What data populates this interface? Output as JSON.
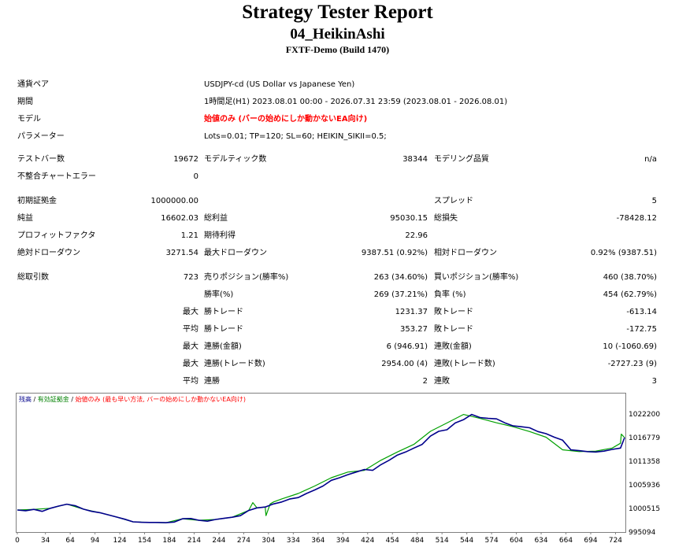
{
  "report": {
    "title": "Strategy Tester Report",
    "expert": "04_HeikinAshi",
    "server": "FXTF-Demo (Build 1470)"
  },
  "settings": {
    "symbol_label": "通貨ペア",
    "symbol_value": "USDJPY-cd (US Dollar vs Japanese Yen)",
    "period_label": "期間",
    "period_value": "1時間足(H1) 2023.08.01 00:00 - 2026.07.31 23:59 (2023.08.01 - 2026.08.01)",
    "model_label": "モデル",
    "model_value": "始値のみ (バーの始めにしか動かないEA向け)",
    "params_label": "パラメーター",
    "params_value": "Lots=0.01; TP=120; SL=60; HEIKIN_SIKII=0.5;"
  },
  "bars": {
    "bars_label": "テストバー数",
    "bars_value": "19672",
    "ticks_label": "モデルティック数",
    "ticks_value": "38344",
    "quality_label": "モデリング品質",
    "quality_value": "n/a",
    "errors_label": "不整合チャートエラー",
    "errors_value": "0"
  },
  "stats": {
    "deposit_label": "初期証拠金",
    "deposit_value": "1000000.00",
    "spread_label": "スプレッド",
    "spread_value": "5",
    "net_label": "純益",
    "net_value": "16602.03",
    "gross_profit_label": "総利益",
    "gross_profit_value": "95030.15",
    "gross_loss_label": "総損失",
    "gross_loss_value": "-78428.12",
    "pf_label": "プロフィットファクタ",
    "pf_value": "1.21",
    "payoff_label": "期待利得",
    "payoff_value": "22.96",
    "abs_dd_label": "絶対ドローダウン",
    "abs_dd_value": "3271.54",
    "max_dd_label": "最大ドローダウン",
    "max_dd_value": "9387.51 (0.92%)",
    "rel_dd_label": "相対ドローダウン",
    "rel_dd_value": "0.92% (9387.51)"
  },
  "trades": {
    "total_label": "総取引数",
    "total_value": "723",
    "short_label": "売りポジション(勝率%)",
    "short_value": "263 (34.60%)",
    "long_label": "買いポジション(勝率%)",
    "long_value": "460 (38.70%)",
    "win_label": "勝率(%)",
    "win_value": "269 (37.21%)",
    "loss_label": "負率 (%)",
    "loss_value": "454 (62.79%)",
    "max_word": "最大",
    "avg_word": "平均",
    "largest_win_label": "勝トレード",
    "largest_win_value": "1231.37",
    "largest_loss_label": "敗トレード",
    "largest_loss_value": "-613.14",
    "avg_win_label": "勝トレード",
    "avg_win_value": "353.27",
    "avg_loss_label": "敗トレード",
    "avg_loss_value": "-172.75",
    "max_consec_wins_label": "連勝(金額)",
    "max_consec_wins_value": "6 (946.91)",
    "max_consec_losses_label": "連敗(金額)",
    "max_consec_losses_value": "10 (-1060.69)",
    "max_consec_profit_label": "連勝(トレード数)",
    "max_consec_profit_value": "2954.00 (4)",
    "max_consec_loss_label": "連敗(トレード数)",
    "max_consec_loss_value": "-2727.23 (9)",
    "avg_consec_wins_label": "連勝",
    "avg_consec_wins_value": "2",
    "avg_consec_losses_label": "連敗",
    "avg_consec_losses_value": "3"
  },
  "chart_legend": {
    "balance": "残高",
    "equity": "有効証拠金",
    "sep": " / ",
    "model": "始値のみ (最も早い方法, バーの始めにしか動かないEA向け)"
  },
  "chart_data": {
    "type": "line",
    "colors": {
      "balance": "#00008b",
      "equity": "#00a000"
    },
    "y_ticks": [
      "1022200",
      "1016779",
      "1011358",
      "1005936",
      "1000515",
      "995094"
    ],
    "x_ticks": [
      "0",
      "34",
      "64",
      "94",
      "124",
      "154",
      "184",
      "214",
      "244",
      "274",
      "304",
      "334",
      "364",
      "394",
      "424",
      "454",
      "484",
      "514",
      "544",
      "574",
      "604",
      "634",
      "664",
      "694",
      "724"
    ],
    "xlim": [
      0,
      735
    ],
    "ylim": [
      995094,
      1024500
    ],
    "series": [
      {
        "key": "balance",
        "x": [
          0,
          10,
          20,
          30,
          40,
          50,
          60,
          70,
          80,
          90,
          100,
          110,
          120,
          130,
          140,
          150,
          160,
          170,
          180,
          190,
          200,
          210,
          220,
          230,
          240,
          250,
          260,
          270,
          280,
          290,
          300,
          310,
          320,
          330,
          340,
          350,
          360,
          370,
          380,
          390,
          400,
          410,
          420,
          430,
          440,
          450,
          460,
          470,
          480,
          490,
          500,
          510,
          520,
          530,
          540,
          550,
          560,
          570,
          580,
          590,
          600,
          610,
          620,
          630,
          640,
          650,
          660,
          670,
          680,
          690,
          700,
          710,
          720,
          730,
          735
        ],
        "y": [
          1000515,
          1000350,
          1000650,
          1000200,
          1000900,
          1001400,
          1001850,
          1001500,
          1000700,
          1000200,
          999900,
          999400,
          998900,
          998400,
          997800,
          997700,
          997650,
          997650,
          997600,
          997750,
          998500,
          998550,
          998150,
          997950,
          998350,
          998600,
          998850,
          999200,
          1000400,
          1001000,
          1001200,
          1001900,
          1002350,
          1003050,
          1003350,
          1004300,
          1005100,
          1006000,
          1007300,
          1007900,
          1008600,
          1009200,
          1009800,
          1009600,
          1010900,
          1011900,
          1013100,
          1013800,
          1014700,
          1015550,
          1017450,
          1018550,
          1018900,
          1020450,
          1021200,
          1022400,
          1021700,
          1021500,
          1021400,
          1020500,
          1019800,
          1019600,
          1019350,
          1018500,
          1018000,
          1017200,
          1016500,
          1014300,
          1014100,
          1013900,
          1013800,
          1014000,
          1014400,
          1014700,
          1017100
        ]
      },
      {
        "key": "equity",
        "x": [
          0,
          20,
          40,
          60,
          80,
          100,
          120,
          140,
          160,
          180,
          200,
          220,
          240,
          260,
          280,
          285,
          290,
          300,
          301,
          306,
          310,
          320,
          340,
          360,
          380,
          400,
          420,
          440,
          460,
          480,
          500,
          520,
          540,
          560,
          580,
          600,
          620,
          640,
          660,
          680,
          700,
          720,
          730,
          731,
          735
        ],
        "y": [
          1000515,
          1000650,
          1000900,
          1001850,
          1000700,
          999900,
          998900,
          997800,
          997650,
          997600,
          998500,
          998150,
          998350,
          998850,
          1000400,
          1002200,
          1001000,
          1001200,
          999200,
          1001900,
          1002350,
          1003050,
          1004300,
          1006000,
          1007900,
          1009200,
          1009600,
          1011900,
          1013800,
          1015550,
          1018550,
          1020450,
          1022400,
          1021500,
          1020500,
          1019600,
          1018500,
          1017200,
          1014300,
          1013900,
          1014000,
          1014700,
          1015800,
          1017900,
          1017100
        ]
      }
    ]
  }
}
